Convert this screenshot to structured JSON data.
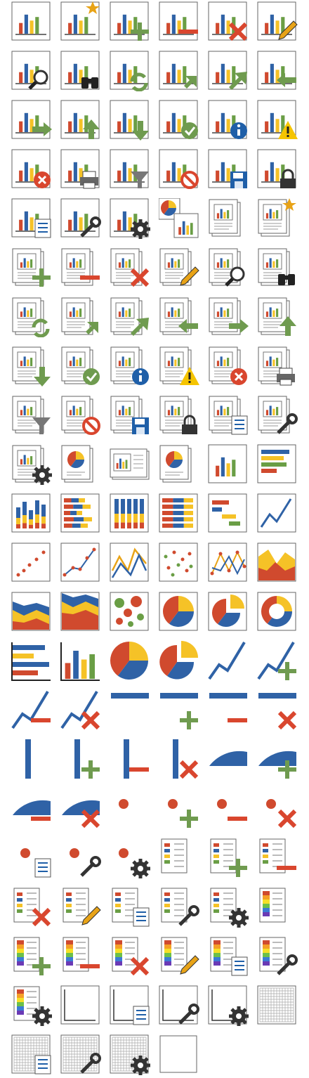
{
  "colors": {
    "blue": "#2f62a6",
    "red": "#d04a2e",
    "yellow": "#f5c227",
    "green": "#6a9e45",
    "arrow_green": "#6f9b4f",
    "x_red": "#d9462e",
    "star": "#e8a317",
    "info_blue": "#1f5fa8",
    "warn_yellow": "#f5c400",
    "dark": "#222222",
    "gray": "#555555",
    "frame": "#666666"
  },
  "icons": [
    "chart-icon",
    "chart-new-icon",
    "chart-add-icon",
    "chart-remove-icon",
    "chart-delete-icon",
    "chart-edit-icon",
    "chart-search-icon",
    "chart-find-icon",
    "chart-refresh-icon",
    "chart-import-icon",
    "chart-export-icon",
    "chart-back-icon",
    "chart-next-icon",
    "chart-up-icon",
    "chart-down-icon",
    "chart-ok-icon",
    "chart-info-icon",
    "chart-warning-icon",
    "chart-error-icon",
    "chart-print-icon",
    "chart-filter-icon",
    "chart-block-icon",
    "chart-save-icon",
    "chart-lock-icon",
    "chart-properties-icon",
    "chart-tool-icon",
    "chart-settings-icon",
    "charts-icon",
    "report-icon",
    "report-new-icon",
    "report-add-icon",
    "report-remove-icon",
    "report-delete-icon",
    "report-edit-icon",
    "report-search-icon",
    "report-find-icon",
    "report-refresh-icon",
    "report-import-icon",
    "report-export-icon",
    "report-back-icon",
    "report-next-icon",
    "report-up-icon",
    "report-down-icon",
    "report-ok-icon",
    "report-info-icon",
    "report-warning-icon",
    "report-error-icon",
    "report-print-icon",
    "report-filter-icon",
    "report-block-icon",
    "report-save-icon",
    "report-lock-icon",
    "report-properties-icon",
    "report-tool-icon",
    "report-settings-icon",
    "report-pie-icon",
    "report-landscape-icon",
    "report-landscape-pie-icon",
    "column-chart-icon",
    "bar-chart-icon",
    "stacked-column-icon",
    "stacked-bar-icon",
    "full-stacked-column-icon",
    "full-stacked-bar-icon",
    "gantt-icon",
    "line-chart-icon",
    "point-chart-icon",
    "point-line-icon",
    "multi-line-icon",
    "multi-point-icon",
    "multi-point-line-icon",
    "area-chart-icon",
    "stacked-area-icon",
    "full-stacked-area-icon",
    "bubble-chart-icon",
    "pie-chart-icon",
    "exploded-pie-icon",
    "doughnut-icon",
    "bars-plain-icon",
    "columns-plain-icon",
    "pie-plain-icon",
    "exploded-pie-plain-icon",
    "line-icon",
    "line-add-icon",
    "line-remove-icon",
    "line-delete-icon",
    "hline-icon",
    "hline-add-icon",
    "hline-remove-icon",
    "hline-delete-icon",
    "vline-icon",
    "vline-add-icon",
    "vline-remove-icon",
    "vline-delete-icon",
    "sector-icon",
    "sector-add-icon",
    "sector-remove-icon",
    "sector-delete-icon",
    "point-icon",
    "point-add-icon",
    "point-remove-icon",
    "point-delete-icon",
    "point-properties-icon",
    "point-tool-icon",
    "point-settings-icon",
    "legend-icon",
    "legend-add-icon",
    "legend-remove-icon",
    "legend-delete-icon",
    "legend-edit-icon",
    "legend-properties-icon",
    "legend-tool-icon",
    "legend-settings-icon",
    "gradient-legend-icon",
    "gradient-legend-add-icon",
    "gradient-legend-remove-icon",
    "gradient-legend-delete-icon",
    "gradient-legend-edit-icon",
    "gradient-legend-properties-icon",
    "gradient-legend-tool-icon",
    "gradient-legend-settings-icon",
    "axes-icon",
    "axes-properties-icon",
    "axes-tool-icon",
    "axes-settings-icon",
    "grid-icon",
    "grid-properties-icon",
    "grid-tool-icon",
    "grid-settings-icon",
    "frame-icon"
  ]
}
